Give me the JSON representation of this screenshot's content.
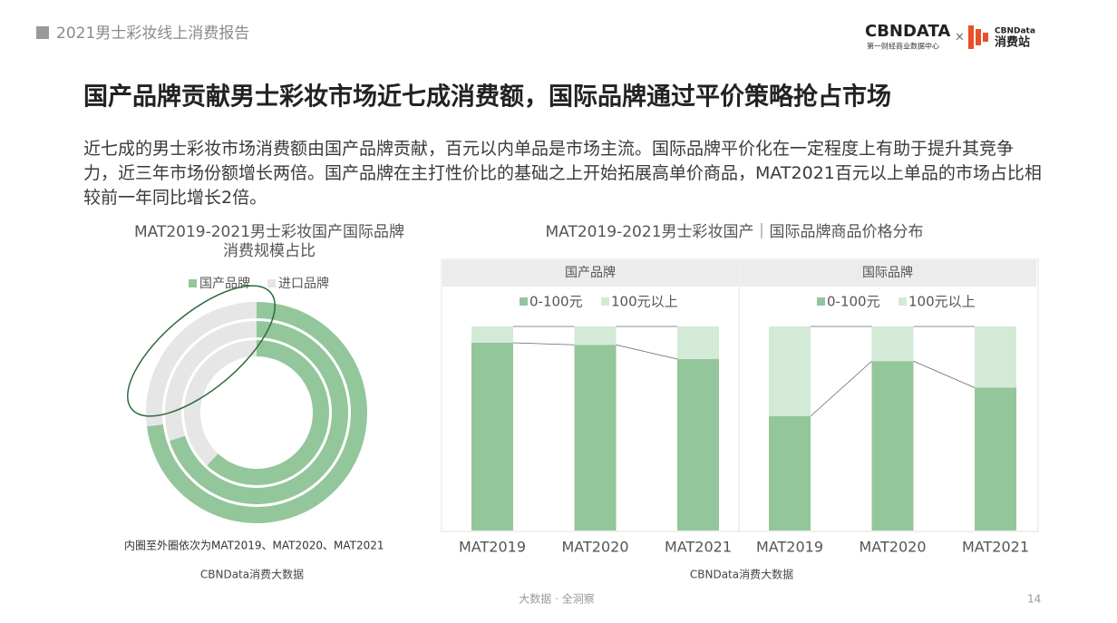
{
  "header": {
    "report": "2021男士彩妆线上消费报告",
    "logo": "CBNDATA",
    "logo_sub": "第一财经商业数据中心",
    "times": "×",
    "logo2_top": "CBNData",
    "logo2": "消费站"
  },
  "headline": "国产品牌贡献男士彩妆市场近七成消费额，国际品牌通过平价策略抢占市场",
  "body": "近七成的男士彩妆市场消费额由国产品牌贡献，百元以内单品是市场主流。国际品牌平价化在一定程度上有助于提升其竞争力，近三年市场份额增长两倍。国产品牌在主打性价比的基础之上开始拓展高单价商品，MAT2021百元以上单品的市场占比相较前一年同比增长2倍。",
  "price_distribution": {
    "title": "MAT2019-2021男士彩妆国产｜国际品牌商品价格分布",
    "source": "CBNData消费大数据"
  },
  "chart_data": [
    {
      "type": "donut",
      "title": [
        "MAT2019-2021男士彩妆国产国际品牌",
        "消费规模占比"
      ],
      "series": [
        {
          "name": "国产品牌",
          "color": "#93c69b",
          "values": [
            62,
            70,
            73
          ]
        },
        {
          "name": "进口品牌",
          "color": "#e6e6e6",
          "values": [
            38,
            30,
            27
          ]
        }
      ],
      "note": "内圈至外圈依次为MAT2019、MAT2020、MAT2021",
      "source": "CBNData消费大数据"
    },
    {
      "type": "bar",
      "title": "国产品牌",
      "stacked": true,
      "categories": [
        "MAT2019",
        "MAT2020",
        "MAT2021"
      ],
      "series": [
        {
          "name": "0-100元",
          "color": "#93c69b",
          "values": [
            92,
            91,
            84
          ]
        },
        {
          "name": "100元以上",
          "color": "#d3ead6",
          "values": [
            8,
            9,
            16
          ]
        }
      ]
    },
    {
      "type": "bar",
      "title": "国际品牌",
      "stacked": true,
      "categories": [
        "MAT2019",
        "MAT2020",
        "MAT2021"
      ],
      "series": [
        {
          "name": "0-100元",
          "color": "#93c69b",
          "values": [
            56,
            83,
            70
          ]
        },
        {
          "name": "100元以上",
          "color": "#d3ead6",
          "values": [
            44,
            17,
            30
          ]
        }
      ]
    }
  ]
}
